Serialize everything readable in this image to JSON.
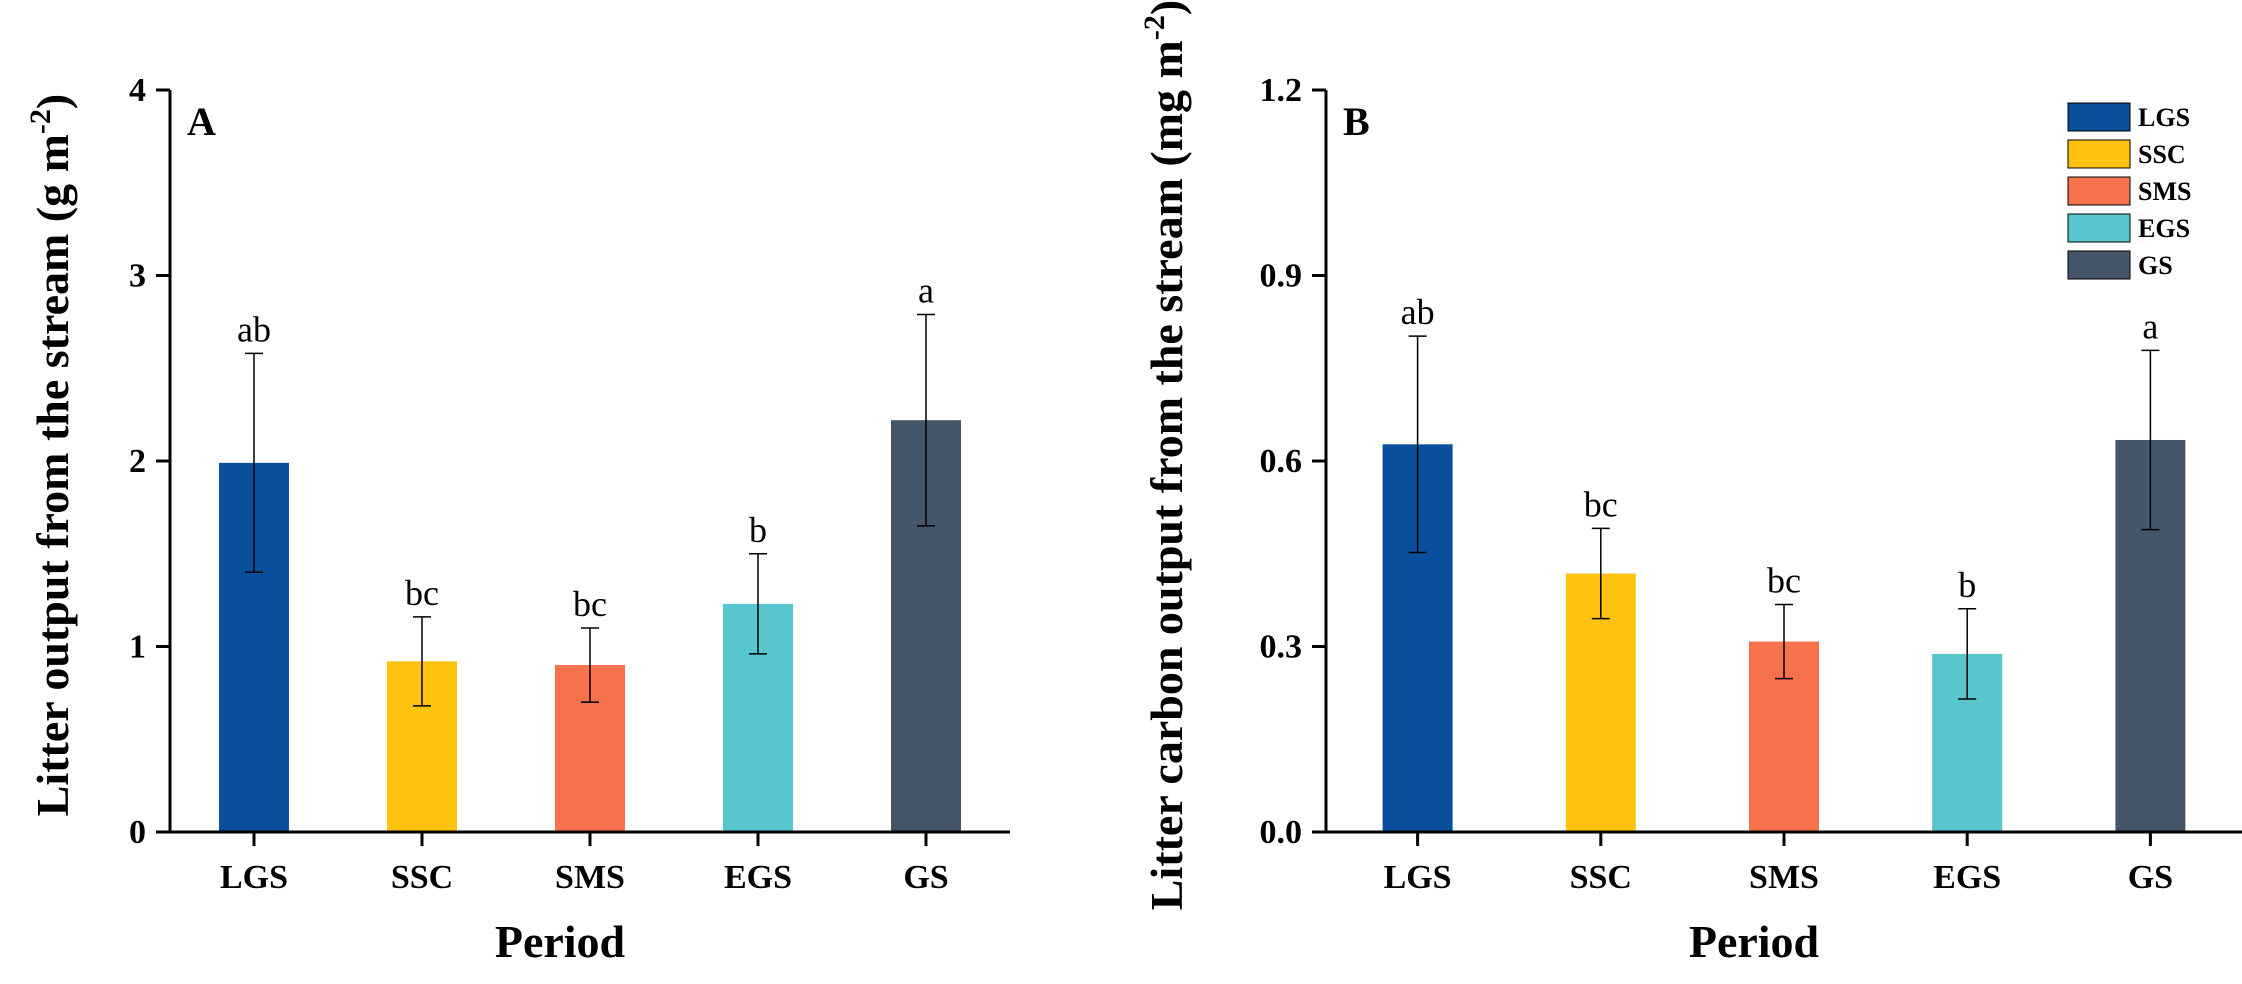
{
  "chart_data": [
    {
      "type": "bar",
      "panel_label": "A",
      "categories": [
        "LGS",
        "SSC",
        "SMS",
        "EGS",
        "GS"
      ],
      "values": [
        1.99,
        0.92,
        0.9,
        1.23,
        2.22
      ],
      "errors": [
        0.59,
        0.24,
        0.2,
        0.27,
        0.57
      ],
      "significance": [
        "ab",
        "bc",
        "bc",
        "b",
        "a"
      ],
      "ylim": [
        0,
        4
      ],
      "yticks": [
        0,
        1,
        2,
        3,
        4
      ],
      "ytick_labels": [
        "0",
        "1",
        "2",
        "3",
        "4"
      ],
      "xlabel": "Period",
      "ylabel": "Litter output from the stream",
      "yunit_base": "(g m",
      "yunit_exp": "-2",
      "yunit_close": ")"
    },
    {
      "type": "bar",
      "panel_label": "B",
      "categories": [
        "LGS",
        "SSC",
        "SMS",
        "EGS",
        "GS"
      ],
      "values": [
        0.627,
        0.418,
        0.308,
        0.288,
        0.634
      ],
      "errors": [
        0.175,
        0.073,
        0.06,
        0.073,
        0.145
      ],
      "significance": [
        "ab",
        "bc",
        "bc",
        "b",
        "a"
      ],
      "ylim": [
        0,
        1.2
      ],
      "yticks": [
        0,
        0.3,
        0.6,
        0.9,
        1.2
      ],
      "ytick_labels": [
        "0.0",
        "0.3",
        "0.6",
        "0.9",
        "1.2"
      ],
      "xlabel": "Period",
      "ylabel": "Litter carbon output from the stream",
      "yunit_base": "(mg m",
      "yunit_exp": "-2",
      "yunit_close": ")",
      "legend_position": "top-right"
    }
  ],
  "colors": {
    "LGS": "#0a4f9c",
    "SSC": "#ffc20e",
    "SMS": "#f6724d",
    "EGS": "#58c6cf",
    "GS": "#46566a"
  },
  "legend": [
    {
      "label": "LGS",
      "color": "#0a4f9c"
    },
    {
      "label": "SSC",
      "color": "#ffc20e"
    },
    {
      "label": "SMS",
      "color": "#f6724d"
    },
    {
      "label": "EGS",
      "color": "#58c6cf"
    },
    {
      "label": "GS",
      "color": "#46566a"
    }
  ]
}
